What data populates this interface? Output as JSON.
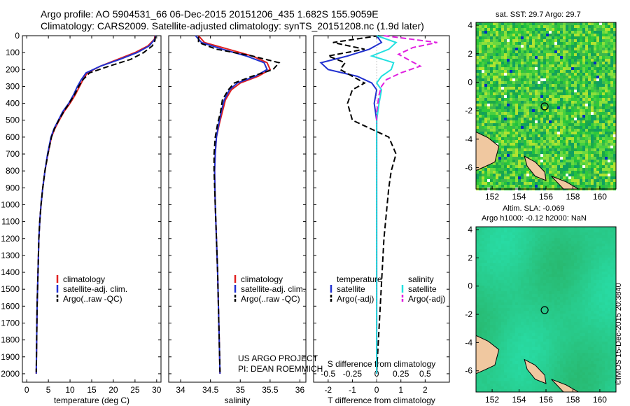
{
  "title_line1": "Argo profile: AO 5904531_66 06-Dec-2015 20151206_435 1.682S 155.9059E",
  "title_line2": "Climatology: CARS2009. Satellite-adjusted climatology: synTS_20151208.nc (1.9d later)",
  "stamp": "©IMOS 15-Dec-2015 20:3840",
  "credit_line1": "US ARGO PROJECT",
  "credit_line2": "PI: DEAN ROEMMICH",
  "colors": {
    "climatology": "#e02020",
    "satellite": "#2030d0",
    "argo": "#000000",
    "sal_sat": "#22e0e0",
    "sal_argo": "#e020e0"
  },
  "map1_title": "sat. SST: 29.7 Argo: 29.7",
  "map2_title1": "Altim. SLA: -0.069",
  "map2_title2": "Argo h1000: -0.12 h2000: NaN",
  "chart_data": [
    {
      "type": "line",
      "xlabel": "temperature (deg C)",
      "ylabel": "",
      "xlim": [
        -1,
        31
      ],
      "ylim": [
        2050,
        0
      ],
      "xticks": [
        0,
        5,
        10,
        15,
        20,
        25,
        30
      ],
      "yticks": [
        0,
        100,
        200,
        300,
        400,
        500,
        600,
        700,
        800,
        900,
        1000,
        1100,
        1200,
        1300,
        1400,
        1500,
        1600,
        1700,
        1800,
        1900,
        2000
      ],
      "legend": [
        "climatology",
        "satellite-adj. clim.",
        "Argo(..raw -QC)"
      ],
      "series": [
        {
          "name": "climatology",
          "style": "solid",
          "color": "#e02020",
          "x": [
            29.6,
            29.5,
            28,
            25,
            21,
            17,
            14,
            13,
            12.2,
            11.2,
            10,
            8.6,
            7.5,
            6.5,
            5.7,
            4.9,
            4.2,
            3.7,
            3.3,
            3.0,
            2.8,
            2.6,
            2.4,
            2.3,
            2.2
          ],
          "y": [
            0,
            20,
            60,
            100,
            140,
            180,
            220,
            260,
            300,
            350,
            400,
            450,
            500,
            550,
            600,
            700,
            800,
            900,
            1000,
            1100,
            1200,
            1400,
            1600,
            1800,
            2000
          ]
        },
        {
          "name": "satellite-adj. clim.",
          "style": "solid",
          "color": "#2030d0",
          "x": [
            29.7,
            29.6,
            28.3,
            25.5,
            21.5,
            17,
            13.7,
            12.6,
            11.7,
            10.8,
            9.7,
            8.3,
            7.3,
            6.3,
            5.6,
            4.8,
            4.2,
            3.7,
            3.3,
            3.0,
            2.8,
            2.6,
            2.4,
            2.3,
            2.2
          ],
          "y": [
            0,
            20,
            60,
            100,
            140,
            180,
            220,
            260,
            300,
            350,
            400,
            450,
            500,
            550,
            600,
            700,
            800,
            900,
            1000,
            1100,
            1200,
            1400,
            1600,
            1800,
            2000
          ]
        },
        {
          "name": "Argo(..raw -QC)",
          "style": "dashed",
          "color": "#000000",
          "x": [
            29.7,
            29.6,
            29,
            27,
            24,
            19,
            14.5,
            13,
            12,
            11,
            9.8,
            8.5,
            7.4,
            6.4,
            5.7,
            4.9,
            4.2,
            3.7,
            3.3,
            3.0,
            2.8,
            2.6,
            2.4,
            2.3,
            2.2
          ],
          "y": [
            5,
            30,
            60,
            100,
            140,
            180,
            220,
            260,
            300,
            350,
            400,
            450,
            500,
            550,
            600,
            700,
            800,
            900,
            1000,
            1100,
            1200,
            1400,
            1600,
            1800,
            1990
          ]
        }
      ]
    },
    {
      "type": "line",
      "xlabel": "salinity",
      "ylabel": "",
      "xlim": [
        33.8,
        36.1
      ],
      "ylim": [
        2050,
        0
      ],
      "xticks": [
        34,
        34.5,
        35,
        35.5,
        36
      ],
      "legend": [
        "climatology",
        "satellite-adj. clim.",
        "Argo(..raw -QC)"
      ],
      "series": [
        {
          "name": "climatology",
          "style": "solid",
          "color": "#e02020",
          "x": [
            34.3,
            34.4,
            34.8,
            35.2,
            35.45,
            35.5,
            35.3,
            35.0,
            34.85,
            34.75,
            34.7,
            34.65,
            34.6,
            34.58,
            34.57,
            34.58,
            34.6,
            34.62,
            34.64,
            34.66
          ],
          "y": [
            0,
            40,
            80,
            120,
            160,
            200,
            240,
            280,
            320,
            380,
            450,
            520,
            600,
            700,
            800,
            1000,
            1200,
            1400,
            1700,
            2000
          ]
        },
        {
          "name": "satellite-adj. clim.",
          "style": "solid",
          "color": "#2030d0",
          "x": [
            34.25,
            34.35,
            34.7,
            35.1,
            35.4,
            35.45,
            35.25,
            34.95,
            34.82,
            34.73,
            34.68,
            34.64,
            34.6,
            34.58,
            34.57,
            34.58,
            34.6,
            34.62,
            34.64,
            34.66
          ],
          "y": [
            0,
            40,
            80,
            120,
            160,
            200,
            240,
            280,
            320,
            380,
            450,
            520,
            600,
            700,
            800,
            1000,
            1200,
            1400,
            1700,
            2000
          ]
        },
        {
          "name": "Argo(..raw -QC)",
          "style": "dashed",
          "color": "#000000",
          "x": [
            34.3,
            34.3,
            34.6,
            35.2,
            35.65,
            35.55,
            35.2,
            34.9,
            34.8,
            34.7,
            34.67,
            34.62,
            34.58,
            34.56,
            34.56,
            34.58,
            34.6,
            34.62,
            34.64,
            34.66
          ],
          "y": [
            5,
            40,
            80,
            120,
            160,
            200,
            240,
            280,
            320,
            380,
            450,
            520,
            600,
            700,
            800,
            1000,
            1200,
            1400,
            1700,
            1990
          ]
        }
      ]
    },
    {
      "type": "line",
      "xlabel": "T difference from climatology",
      "xlabel_top": "S difference from climatology",
      "xlim": [
        -2.6,
        3.0
      ],
      "xticks": [
        -2,
        -1,
        0,
        1,
        2
      ],
      "xticks_top": [
        "-0.5",
        "-0.25",
        "0",
        "0.25",
        "0.5"
      ],
      "xticks_top_values": [
        -2,
        -1,
        0,
        1,
        2
      ],
      "legend_groups": [
        "temperature",
        "salinity"
      ],
      "legend": [
        "satellite",
        "Argo(-adj)",
        "satellite",
        "Argo(-adj)"
      ],
      "series": [
        {
          "name": "satellite",
          "group": "temperature",
          "style": "solid",
          "color": "#2030d0",
          "x": [
            0,
            0.2,
            -0.3,
            -1.2,
            -2.3,
            -2.0,
            -0.8,
            -0.2,
            0,
            -0.1,
            0,
            0,
            0,
            0,
            0
          ],
          "y": [
            0,
            40,
            80,
            120,
            160,
            200,
            240,
            280,
            320,
            400,
            500,
            700,
            1000,
            1500,
            2000
          ]
        },
        {
          "name": "Argo(-adj)",
          "group": "temperature",
          "style": "dashed",
          "color": "#000000",
          "x": [
            0.1,
            -1.8,
            -0.5,
            -2.0,
            -1.3,
            -1.5,
            -1.0,
            -0.5,
            -1.0,
            -1.2,
            -1.0,
            0.5,
            0.8,
            0.6,
            0.5,
            0.3,
            0.0
          ],
          "y": [
            0,
            40,
            80,
            120,
            160,
            200,
            240,
            280,
            320,
            400,
            500,
            600,
            700,
            800,
            900,
            1200,
            1990
          ]
        },
        {
          "name": "satellite",
          "group": "salinity",
          "style": "solid",
          "color": "#22e0e0",
          "x": [
            0,
            0.8,
            0.5,
            -0.2,
            0.7,
            0.6,
            0.2,
            0,
            0.2,
            0.1,
            0,
            0,
            0,
            0,
            0
          ],
          "y": [
            0,
            40,
            80,
            120,
            160,
            200,
            240,
            280,
            320,
            400,
            500,
            700,
            1000,
            1500,
            2000
          ]
        },
        {
          "name": "Argo(-adj)",
          "group": "salinity",
          "style": "dashed",
          "color": "#e020e0",
          "x": [
            0.3,
            2.5,
            1.5,
            0.9,
            1.8,
            1.0,
            0.4,
            0.2,
            0.1,
            0,
            0,
            0
          ],
          "y": [
            0,
            40,
            70,
            110,
            180,
            220,
            260,
            300,
            350,
            450,
            500,
            520
          ]
        }
      ]
    }
  ],
  "map1": {
    "xticks": [
      152,
      154,
      156,
      158,
      160
    ],
    "yticks": [
      4,
      2,
      0,
      -2,
      -4,
      -6
    ],
    "xlim": [
      150.8,
      161.2
    ],
    "ylim": [
      -7.5,
      4.2
    ],
    "marker": [
      155.9,
      -1.7
    ]
  },
  "map2": {
    "xticks": [
      152,
      154,
      156,
      158,
      160
    ],
    "yticks": [
      4,
      2,
      0,
      -2,
      -4,
      -6
    ],
    "xlim": [
      150.8,
      161.2
    ],
    "ylim": [
      -7.5,
      4.2
    ],
    "marker": [
      155.9,
      -1.7
    ]
  }
}
